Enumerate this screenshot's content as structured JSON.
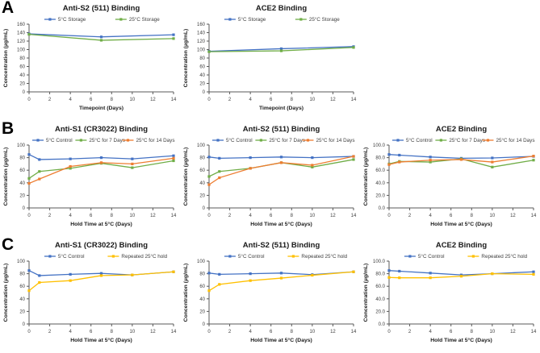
{
  "panels": [
    {
      "label": "A"
    },
    {
      "label": "B"
    },
    {
      "label": "C"
    }
  ],
  "colors": {
    "series_blue": "#4472C4",
    "series_green": "#70AD47",
    "series_orange": "#ED7D31",
    "series_gold": "#FFC000",
    "axis": "#595959",
    "tick_text": "#404040",
    "title_text": "#1a1a1a"
  },
  "chart_data": [
    {
      "type": "line",
      "panel": "A",
      "title": "Anti-S2 (511) Binding",
      "xlabel": "Timepoint (Days)",
      "ylabel": "Concentration (µg/mL)",
      "xlim": [
        0,
        14
      ],
      "xticks": [
        0,
        2,
        4,
        6,
        8,
        10,
        12,
        14
      ],
      "ylim": [
        0,
        160
      ],
      "yticks": [
        0,
        20,
        40,
        60,
        80,
        100,
        120,
        140,
        160
      ],
      "ytick_decimals": 0,
      "grid": false,
      "legend_position": "top",
      "x": [
        0,
        7,
        14
      ],
      "series": [
        {
          "name": "5°C Storage",
          "color": "#4472C4",
          "values": [
            137,
            130,
            135
          ]
        },
        {
          "name": "25°C Storage",
          "color": "#70AD47",
          "values": [
            136,
            122,
            126
          ]
        }
      ]
    },
    {
      "type": "line",
      "panel": "A",
      "title": "ACE2 Binding",
      "xlabel": "Timepoint (Days)",
      "ylabel": "Concentration (µg/mL)",
      "xlim": [
        0,
        14
      ],
      "xticks": [
        0,
        2,
        4,
        6,
        8,
        10,
        12,
        14
      ],
      "ylim": [
        0,
        160
      ],
      "yticks": [
        0,
        20,
        40,
        60,
        80,
        100,
        120,
        140,
        160
      ],
      "ytick_decimals": 0,
      "grid": false,
      "legend_position": "top",
      "x": [
        0,
        7,
        14
      ],
      "series": [
        {
          "name": "5°C Storage",
          "color": "#4472C4",
          "values": [
            96,
            102,
            107
          ]
        },
        {
          "name": "25°C Storage",
          "color": "#70AD47",
          "values": [
            95,
            97,
            105
          ]
        }
      ]
    },
    {
      "type": "line",
      "panel": "B",
      "title": "Anti-S1 (CR3022) Binding",
      "xlabel": "Hold Time at 5°C (Days)",
      "ylabel": "Concentration (µg/mL)",
      "xlim": [
        0,
        14
      ],
      "xticks": [
        0,
        2,
        4,
        6,
        8,
        10,
        12,
        14
      ],
      "ylim": [
        0,
        100
      ],
      "yticks": [
        0,
        20,
        40,
        60,
        80,
        100
      ],
      "ytick_decimals": 0,
      "grid": false,
      "legend_position": "top",
      "x": [
        0,
        1,
        4,
        7,
        10,
        14
      ],
      "series": [
        {
          "name": "5°C Control",
          "color": "#4472C4",
          "values": [
            85,
            77,
            78,
            80,
            78,
            83
          ]
        },
        {
          "name": "25°C for 7 Days",
          "color": "#70AD47",
          "values": [
            47,
            58,
            63,
            71,
            64,
            75
          ]
        },
        {
          "name": "25°C for 14 Days",
          "color": "#ED7D31",
          "values": [
            39,
            46,
            66,
            72,
            70,
            79
          ]
        }
      ]
    },
    {
      "type": "line",
      "panel": "B",
      "title": "Anti-S2 (511) Binding",
      "xlabel": "Hold Time at 5°C (Days)",
      "ylabel": "Concentration (µg/mL)",
      "xlim": [
        0,
        14
      ],
      "xticks": [
        0,
        2,
        4,
        6,
        8,
        10,
        12,
        14
      ],
      "ylim": [
        0,
        100
      ],
      "yticks": [
        0,
        20,
        40,
        60,
        80,
        100
      ],
      "ytick_decimals": 0,
      "grid": false,
      "legend_position": "top",
      "x": [
        0,
        1,
        4,
        7,
        10,
        14
      ],
      "series": [
        {
          "name": "5°C Control",
          "color": "#4472C4",
          "values": [
            81,
            79,
            80,
            81,
            80,
            82
          ]
        },
        {
          "name": "25°C for 7 Days",
          "color": "#70AD47",
          "values": [
            50,
            58,
            63,
            72,
            65,
            77
          ]
        },
        {
          "name": "25°C for 14 Days",
          "color": "#ED7D31",
          "values": [
            37,
            48,
            63,
            72,
            68,
            82
          ]
        }
      ]
    },
    {
      "type": "line",
      "panel": "B",
      "title": "ACE2 Binding",
      "xlabel": "Hold Time at 5°C (Days)",
      "ylabel": "Concentration (µg/mL)",
      "xlim": [
        0,
        14
      ],
      "xticks": [
        0,
        2,
        4,
        6,
        8,
        10,
        12,
        14
      ],
      "ylim": [
        0,
        100
      ],
      "yticks": [
        0,
        20,
        40,
        60,
        80,
        100
      ],
      "ytick_decimals": 1,
      "grid": false,
      "legend_position": "top",
      "x": [
        0,
        1,
        4,
        7,
        10,
        14
      ],
      "series": [
        {
          "name": "5°C Control",
          "color": "#4472C4",
          "values": [
            85,
            84,
            81,
            79,
            79.5,
            82
          ]
        },
        {
          "name": "25°C for 7 Days",
          "color": "#70AD47",
          "values": [
            70,
            74,
            73,
            78,
            65,
            76
          ]
        },
        {
          "name": "25°C for 14 Days",
          "color": "#ED7D31",
          "values": [
            69,
            73,
            76,
            77,
            73,
            82.5
          ]
        }
      ]
    },
    {
      "type": "line",
      "panel": "C",
      "title": "Anti-S1 (CR3022) Binding",
      "xlabel": "Hold Time at 5°C (Days)",
      "ylabel": "Concentration (µg/mL)",
      "xlim": [
        0,
        14
      ],
      "xticks": [
        0,
        2,
        4,
        6,
        8,
        10,
        12,
        14
      ],
      "ylim": [
        0,
        100
      ],
      "yticks": [
        0,
        20,
        40,
        60,
        80,
        100
      ],
      "ytick_decimals": 0,
      "grid": false,
      "legend_position": "top",
      "x": [
        0,
        1,
        4,
        7,
        10,
        14
      ],
      "series": [
        {
          "name": "5°C Control",
          "color": "#4472C4",
          "values": [
            85,
            77,
            79,
            80.5,
            78,
            83
          ]
        },
        {
          "name": "Repeated 25°C hold",
          "color": "#FFC000",
          "values": [
            53,
            66,
            69,
            77,
            78,
            83
          ]
        }
      ]
    },
    {
      "type": "line",
      "panel": "C",
      "title": "Anti-S2 (511) Binding",
      "xlabel": "Hold Time at 5°C (Days)",
      "ylabel": "Concentration (µg/mL)",
      "xlim": [
        0,
        14
      ],
      "xticks": [
        0,
        2,
        4,
        6,
        8,
        10,
        12,
        14
      ],
      "ylim": [
        0,
        100
      ],
      "yticks": [
        0,
        20,
        40,
        60,
        80,
        100
      ],
      "ytick_decimals": 0,
      "grid": false,
      "legend_position": "top",
      "x": [
        0,
        1,
        4,
        7,
        10,
        14
      ],
      "series": [
        {
          "name": "5°C Control",
          "color": "#4472C4",
          "values": [
            81,
            79,
            80,
            81,
            78.5,
            83
          ]
        },
        {
          "name": "Repeated 25°C hold",
          "color": "#FFC000",
          "values": [
            53,
            63,
            69,
            73,
            77.5,
            83
          ]
        }
      ]
    },
    {
      "type": "line",
      "panel": "C",
      "title": "ACE2 Binding",
      "xlabel": "Hold Time at 5°C (Days)",
      "ylabel": "Concentration (µg/mL)",
      "xlim": [
        0,
        14
      ],
      "xticks": [
        0,
        2,
        4,
        6,
        8,
        10,
        12,
        14
      ],
      "ylim": [
        0,
        100
      ],
      "yticks": [
        0,
        20,
        40,
        60,
        80,
        100
      ],
      "ytick_decimals": 1,
      "grid": false,
      "legend_position": "top",
      "x": [
        0,
        1,
        4,
        7,
        10,
        14
      ],
      "series": [
        {
          "name": "5°C Control",
          "color": "#4472C4",
          "values": [
            85,
            84,
            81,
            78,
            80,
            83
          ]
        },
        {
          "name": "Repeated 25°C hold",
          "color": "#FFC000",
          "values": [
            74,
            73.5,
            73.5,
            76,
            80,
            79
          ]
        }
      ]
    }
  ]
}
